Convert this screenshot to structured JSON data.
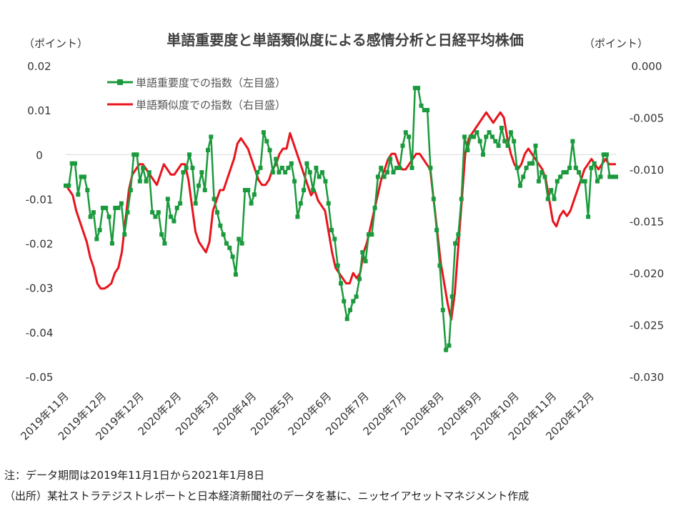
{
  "chart_data": {
    "type": "line",
    "title": "単語重要度と単語類似度による感情分析と日経平均株価",
    "left_axis_label": "（ポイント）",
    "right_axis_label": "（ポイント）",
    "left_ylim": [
      -0.05,
      0.02
    ],
    "left_yticks": [
      "0.02",
      "0.01",
      "0",
      "-0.01",
      "-0.02",
      "-0.03",
      "-0.04",
      "-0.05"
    ],
    "right_ylim": [
      -0.03,
      0.0
    ],
    "right_yticks": [
      "0.000",
      "-0.005",
      "-0.010",
      "-0.015",
      "-0.020",
      "-0.025",
      "-0.030"
    ],
    "x_tick_labels": [
      "2019年11月",
      "2019年12月",
      "2019年12月",
      "2020年2月",
      "2020年3月",
      "2020年4月",
      "2020年5月",
      "2020年6月",
      "2020年7月",
      "2020年7月",
      "2020年8月",
      "2020年9月",
      "2020年10月",
      "2020年11月",
      "2020年12月"
    ],
    "series": [
      {
        "name": "単語重要度での指数（左目盛）",
        "axis": "left",
        "color": "#1a9a3c",
        "marker": "square",
        "values": [
          -0.007,
          -0.007,
          -0.002,
          -0.002,
          -0.009,
          -0.005,
          -0.005,
          -0.008,
          -0.014,
          -0.013,
          -0.019,
          -0.017,
          -0.012,
          -0.012,
          -0.014,
          -0.02,
          -0.012,
          -0.012,
          -0.011,
          -0.018,
          -0.013,
          -0.008,
          0.0,
          0.0,
          -0.006,
          -0.003,
          -0.006,
          -0.004,
          -0.013,
          -0.014,
          -0.013,
          -0.018,
          -0.02,
          -0.01,
          -0.014,
          -0.015,
          -0.012,
          -0.011,
          -0.004,
          -0.003,
          0.0,
          -0.003,
          -0.011,
          -0.007,
          -0.004,
          -0.008,
          0.001,
          0.004,
          -0.01,
          -0.013,
          -0.016,
          -0.018,
          -0.02,
          -0.021,
          -0.023,
          -0.027,
          -0.019,
          -0.02,
          -0.008,
          -0.008,
          -0.011,
          -0.009,
          -0.004,
          -0.003,
          0.005,
          0.003,
          0.001,
          -0.004,
          -0.001,
          -0.004,
          -0.003,
          -0.004,
          -0.003,
          -0.002,
          -0.006,
          -0.014,
          -0.011,
          -0.008,
          -0.002,
          -0.004,
          -0.008,
          -0.003,
          -0.005,
          -0.004,
          -0.006,
          -0.011,
          -0.017,
          -0.019,
          -0.025,
          -0.029,
          -0.033,
          -0.037,
          -0.035,
          -0.033,
          -0.032,
          -0.028,
          -0.022,
          -0.024,
          -0.018,
          -0.018,
          -0.012,
          -0.005,
          -0.003,
          -0.005,
          -0.004,
          -0.001,
          -0.004,
          -0.003,
          -0.003,
          0.002,
          0.005,
          0.004,
          -0.003,
          0.015,
          0.015,
          0.011,
          0.01,
          0.01,
          -0.003,
          -0.01,
          -0.017,
          -0.025,
          -0.035,
          -0.044,
          -0.043,
          -0.032,
          -0.02,
          -0.018,
          -0.01,
          0.004,
          0.001,
          0.004,
          0.004,
          0.005,
          0.003,
          0.0,
          0.004,
          0.005,
          0.004,
          0.003,
          0.002,
          0.006,
          0.003,
          0.002,
          0.005,
          0.003,
          -0.003,
          -0.007,
          -0.005,
          -0.003,
          -0.002,
          -0.002,
          0.002,
          -0.006,
          -0.004,
          -0.005,
          -0.01,
          -0.008,
          -0.01,
          -0.006,
          -0.005,
          -0.004,
          -0.004,
          -0.003,
          0.003,
          -0.003,
          -0.004,
          -0.006,
          -0.006,
          -0.014,
          -0.003,
          -0.002,
          -0.006,
          -0.005,
          0.0,
          0.0,
          -0.005,
          -0.005,
          -0.005
        ]
      },
      {
        "name": "単語類似度での指数（右目盛）",
        "axis": "right",
        "color": "#e8141c",
        "values": [
          -0.0115,
          -0.012,
          -0.0125,
          -0.014,
          -0.015,
          -0.016,
          -0.017,
          -0.0185,
          -0.0195,
          -0.021,
          -0.0215,
          -0.0215,
          -0.0213,
          -0.021,
          -0.02,
          -0.0195,
          -0.018,
          -0.015,
          -0.012,
          -0.0105,
          -0.01,
          -0.0095,
          -0.0095,
          -0.01,
          -0.0105,
          -0.011,
          -0.0115,
          -0.0105,
          -0.0095,
          -0.01,
          -0.0105,
          -0.0105,
          -0.01,
          -0.0095,
          -0.0095,
          -0.011,
          -0.0135,
          -0.016,
          -0.017,
          -0.0175,
          -0.018,
          -0.017,
          -0.014,
          -0.013,
          -0.012,
          -0.012,
          -0.011,
          -0.01,
          -0.009,
          -0.0075,
          -0.007,
          -0.0075,
          -0.008,
          -0.009,
          -0.01,
          -0.011,
          -0.0115,
          -0.0115,
          -0.011,
          -0.01,
          -0.0095,
          -0.0085,
          -0.008,
          -0.008,
          -0.0065,
          -0.0075,
          -0.0085,
          -0.0095,
          -0.0105,
          -0.0115,
          -0.0125,
          -0.012,
          -0.013,
          -0.0135,
          -0.014,
          -0.016,
          -0.018,
          -0.0195,
          -0.02,
          -0.0205,
          -0.021,
          -0.021,
          -0.02,
          -0.0205,
          -0.02,
          -0.018,
          -0.017,
          -0.0155,
          -0.014,
          -0.0125,
          -0.011,
          -0.01,
          -0.009,
          -0.0085,
          -0.0085,
          -0.0095,
          -0.01,
          -0.01,
          -0.0095,
          -0.009,
          -0.0085,
          -0.0085,
          -0.009,
          -0.0095,
          -0.01,
          -0.013,
          -0.016,
          -0.019,
          -0.021,
          -0.023,
          -0.0245,
          -0.022,
          -0.0175,
          -0.013,
          -0.0085,
          -0.007,
          -0.0065,
          -0.006,
          -0.0055,
          -0.005,
          -0.0045,
          -0.005,
          -0.0055,
          -0.005,
          -0.0045,
          -0.005,
          -0.007,
          -0.0085,
          -0.0095,
          -0.01,
          -0.0095,
          -0.0085,
          -0.008,
          -0.0085,
          -0.009,
          -0.0095,
          -0.01,
          -0.011,
          -0.013,
          -0.015,
          -0.0155,
          -0.0145,
          -0.014,
          -0.0145,
          -0.014,
          -0.013,
          -0.012,
          -0.011,
          -0.01,
          -0.0095,
          -0.009,
          -0.0095,
          -0.01,
          -0.0095,
          -0.009,
          -0.0095,
          -0.0095,
          -0.0095
        ]
      }
    ]
  },
  "notes": {
    "note1": "注：データ期間は2019年11月1日から2021年1月8日",
    "note2": "（出所）某社ストラテジストレポートと日本経済新聞社のデータを基に、ニッセイアセットマネジメント作成"
  }
}
